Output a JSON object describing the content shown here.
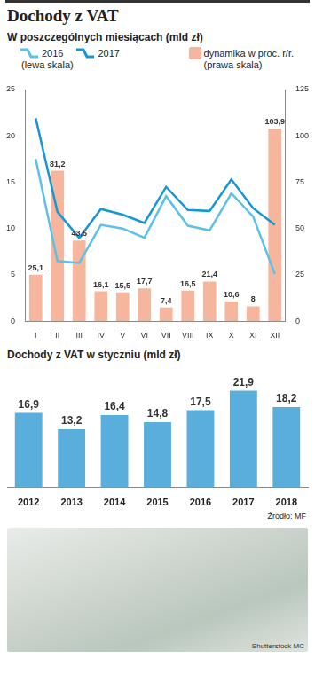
{
  "title": "Dochody z VAT",
  "chart_data": [
    {
      "type": "bar",
      "title": "W poszczególnych miesiącach (mld zł)",
      "categories": [
        "I",
        "II",
        "III",
        "IV",
        "V",
        "VI",
        "VII",
        "VIII",
        "IX",
        "X",
        "XI",
        "XII"
      ],
      "series": [
        {
          "name": "2016",
          "type": "line",
          "color": "#5cc0ea",
          "values": [
            17.5,
            6.5,
            6.3,
            10.4,
            10.0,
            9.0,
            13.5,
            10.3,
            9.8,
            13.8,
            11.3,
            5.1
          ]
        },
        {
          "name": "2017",
          "type": "line",
          "color": "#1597d6",
          "values": [
            21.9,
            11.8,
            9.0,
            12.1,
            11.5,
            10.6,
            14.5,
            12.0,
            11.9,
            15.3,
            12.2,
            10.4
          ]
        },
        {
          "name": "dynamika w proc. r/r.",
          "type": "bar",
          "color": "#f6b59d",
          "axis": "y2",
          "data_labels": true,
          "values": [
            25.1,
            81.2,
            43.5,
            16.1,
            15.5,
            17.7,
            7.4,
            16.5,
            21.4,
            10.6,
            8,
            103.9
          ],
          "value_labels": [
            "25,1",
            "81,2",
            "43,5",
            "16,1",
            "15,5",
            "17,7",
            "7,4",
            "16,5",
            "21,4",
            "10,6",
            "8",
            "103,9"
          ]
        }
      ],
      "annotations": [
        "(lewa skala)",
        "(prawa skala)"
      ],
      "ylim": [
        0,
        25
      ],
      "yticks": [
        0,
        5,
        10,
        15,
        20,
        25
      ],
      "y2lim": [
        0,
        125
      ],
      "y2ticks": [
        0,
        25,
        50,
        75,
        100,
        125
      ],
      "grid": false,
      "legend": "top"
    },
    {
      "type": "bar",
      "title": "Dochody z VAT w styczniu (mld zł)",
      "categories": [
        "2012",
        "2013",
        "2014",
        "2015",
        "2016",
        "2017",
        "2018"
      ],
      "values": [
        16.9,
        13.2,
        16.4,
        14.8,
        17.5,
        21.9,
        18.2
      ],
      "value_labels": [
        "16,9",
        "13,2",
        "16,4",
        "14,8",
        "17,5",
        "21,9",
        "18,2"
      ],
      "color": "#5aaedb",
      "ylim": [
        0,
        25
      ],
      "data_labels": true,
      "tick_labels": "x",
      "grid": false
    }
  ],
  "source": "Źródło: MF",
  "credit": "Shutterstock",
  "author": "MC"
}
